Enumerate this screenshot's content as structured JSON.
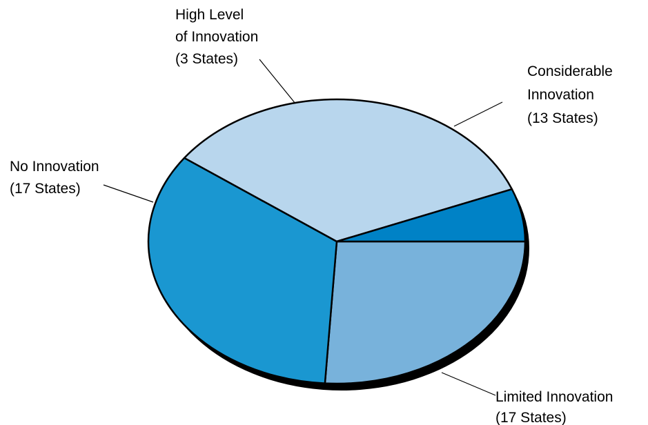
{
  "chart_data": {
    "type": "pie",
    "title": "",
    "start_angle_deg": 0,
    "direction": "clockwise",
    "slices": [
      {
        "label_lines": [
          "Considerable",
          "Innovation",
          "(13 States)"
        ],
        "value": 13,
        "color": "#78b2db"
      },
      {
        "label_lines": [
          "Limited Innovation",
          "(17 States)"
        ],
        "value": 17,
        "color": "#1a97d1"
      },
      {
        "label_lines": [
          "No Innovation",
          "(17 States)"
        ],
        "value": 17,
        "color": "#b8d6ed"
      },
      {
        "label_lines": [
          "High Level",
          "of Innovation",
          "(3 States)"
        ],
        "value": 3,
        "color": "#0082c6"
      }
    ],
    "legend": "none",
    "depth_color": "#000000",
    "outline_color": "#000000"
  }
}
